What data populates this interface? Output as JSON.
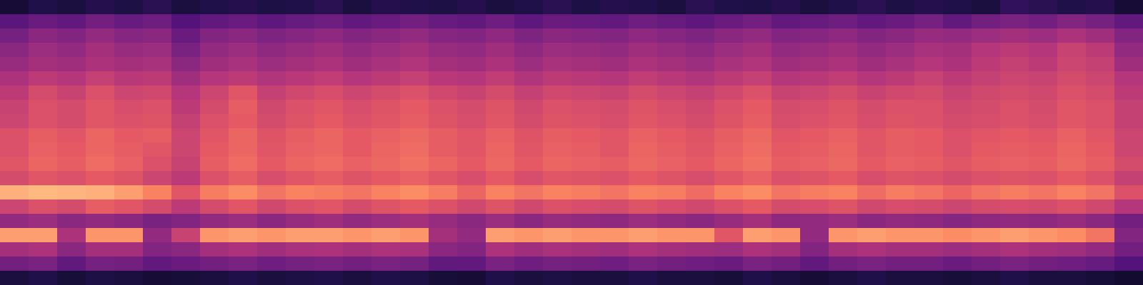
{
  "chart_data": {
    "type": "heatmap",
    "color": "magma",
    "tick_labels": false,
    "zlim": [
      0,
      100
    ],
    "cells": [
      [
        10,
        14,
        12,
        15,
        13,
        16,
        12,
        14,
        15,
        13,
        14,
        16,
        12,
        15,
        14,
        13,
        15,
        12,
        14,
        16,
        13,
        15,
        14,
        12,
        16,
        14,
        13,
        15,
        12,
        14,
        16,
        13,
        15,
        14,
        12,
        18,
        16,
        14,
        15,
        10
      ],
      [
        28,
        32,
        30,
        34,
        31,
        33,
        26,
        30,
        32,
        29,
        31,
        33,
        30,
        32,
        34,
        31,
        30,
        33,
        29,
        32,
        31,
        30,
        33,
        31,
        29,
        32,
        34,
        30,
        31,
        33,
        30,
        32,
        35,
        30,
        34,
        36,
        34,
        38,
        35,
        30
      ],
      [
        35,
        40,
        38,
        42,
        39,
        40,
        32,
        38,
        40,
        37,
        39,
        41,
        38,
        40,
        42,
        39,
        38,
        41,
        37,
        40,
        39,
        38,
        41,
        39,
        37,
        40,
        42,
        38,
        39,
        41,
        38,
        40,
        43,
        42,
        44,
        46,
        44,
        48,
        45,
        38
      ],
      [
        40,
        44,
        42,
        46,
        43,
        44,
        36,
        42,
        44,
        41,
        43,
        45,
        42,
        44,
        46,
        43,
        42,
        45,
        41,
        44,
        43,
        42,
        45,
        43,
        41,
        44,
        46,
        42,
        43,
        45,
        42,
        44,
        47,
        46,
        50,
        52,
        50,
        55,
        52,
        42
      ],
      [
        43,
        46,
        45,
        48,
        46,
        47,
        40,
        45,
        47,
        44,
        46,
        48,
        45,
        47,
        49,
        46,
        45,
        48,
        44,
        47,
        46,
        45,
        48,
        46,
        44,
        47,
        49,
        45,
        46,
        48,
        45,
        47,
        50,
        48,
        52,
        54,
        52,
        56,
        54,
        45
      ],
      [
        48,
        52,
        50,
        54,
        51,
        52,
        45,
        50,
        52,
        49,
        51,
        53,
        50,
        52,
        54,
        51,
        50,
        53,
        49,
        52,
        51,
        50,
        53,
        51,
        49,
        52,
        54,
        50,
        51,
        53,
        50,
        52,
        55,
        52,
        54,
        56,
        55,
        58,
        56,
        50
      ],
      [
        52,
        58,
        55,
        60,
        56,
        57,
        50,
        56,
        62,
        54,
        57,
        59,
        56,
        58,
        60,
        57,
        55,
        58,
        54,
        57,
        56,
        55,
        58,
        56,
        54,
        57,
        60,
        55,
        56,
        58,
        55,
        57,
        58,
        55,
        57,
        58,
        57,
        60,
        58,
        52
      ],
      [
        55,
        60,
        58,
        62,
        59,
        60,
        52,
        58,
        64,
        57,
        60,
        62,
        59,
        61,
        63,
        60,
        58,
        61,
        57,
        60,
        59,
        58,
        61,
        59,
        57,
        60,
        63,
        58,
        59,
        61,
        58,
        60,
        60,
        57,
        58,
        60,
        58,
        62,
        60,
        54
      ],
      [
        56,
        60,
        58,
        62,
        60,
        61,
        54,
        60,
        63,
        58,
        61,
        63,
        60,
        62,
        64,
        61,
        59,
        62,
        58,
        61,
        60,
        59,
        62,
        60,
        58,
        61,
        64,
        59,
        60,
        62,
        59,
        61,
        60,
        58,
        59,
        60,
        59,
        62,
        60,
        54
      ],
      [
        60,
        64,
        62,
        66,
        63,
        64,
        56,
        62,
        66,
        61,
        64,
        66,
        63,
        65,
        67,
        64,
        62,
        65,
        61,
        64,
        63,
        62,
        65,
        63,
        61,
        64,
        67,
        62,
        63,
        65,
        62,
        64,
        63,
        60,
        62,
        63,
        62,
        65,
        62,
        56
      ],
      [
        60,
        65,
        63,
        66,
        64,
        62,
        56,
        63,
        66,
        62,
        65,
        66,
        63,
        66,
        68,
        64,
        62,
        66,
        62,
        65,
        64,
        62,
        66,
        64,
        62,
        65,
        68,
        63,
        64,
        66,
        62,
        64,
        63,
        60,
        63,
        64,
        63,
        66,
        63,
        56
      ],
      [
        62,
        66,
        64,
        68,
        65,
        60,
        55,
        64,
        68,
        63,
        66,
        68,
        65,
        67,
        69,
        66,
        63,
        67,
        63,
        66,
        65,
        64,
        67,
        65,
        63,
        66,
        69,
        64,
        65,
        67,
        63,
        65,
        64,
        62,
        64,
        65,
        64,
        67,
        64,
        58
      ],
      [
        58,
        62,
        60,
        63,
        61,
        56,
        52,
        60,
        64,
        59,
        62,
        64,
        61,
        63,
        65,
        62,
        59,
        63,
        59,
        62,
        61,
        60,
        63,
        61,
        59,
        62,
        65,
        60,
        61,
        63,
        59,
        61,
        60,
        58,
        60,
        61,
        60,
        63,
        60,
        54
      ],
      [
        84,
        86,
        85,
        84,
        80,
        74,
        62,
        72,
        76,
        70,
        74,
        72,
        70,
        74,
        76,
        72,
        66,
        74,
        70,
        74,
        72,
        70,
        74,
        72,
        68,
        74,
        76,
        70,
        72,
        74,
        68,
        72,
        70,
        66,
        70,
        72,
        70,
        74,
        70,
        60
      ],
      [
        56,
        60,
        58,
        64,
        62,
        58,
        52,
        58,
        62,
        57,
        60,
        62,
        58,
        61,
        63,
        60,
        57,
        61,
        57,
        60,
        59,
        58,
        61,
        59,
        57,
        60,
        63,
        58,
        59,
        61,
        57,
        59,
        58,
        56,
        58,
        59,
        58,
        60,
        57,
        50
      ],
      [
        42,
        44,
        40,
        42,
        40,
        36,
        38,
        42,
        44,
        40,
        43,
        45,
        42,
        44,
        46,
        43,
        40,
        44,
        40,
        43,
        42,
        41,
        44,
        42,
        40,
        43,
        46,
        41,
        42,
        44,
        40,
        42,
        41,
        39,
        41,
        42,
        41,
        43,
        40,
        34
      ],
      [
        80,
        80,
        48,
        78,
        78,
        42,
        55,
        78,
        80,
        78,
        80,
        80,
        78,
        80,
        78,
        46,
        42,
        80,
        78,
        80,
        78,
        78,
        80,
        78,
        78,
        62,
        80,
        78,
        42,
        78,
        80,
        78,
        78,
        76,
        78,
        80,
        78,
        76,
        70,
        38
      ],
      [
        46,
        48,
        40,
        46,
        46,
        38,
        40,
        46,
        48,
        45,
        47,
        48,
        46,
        48,
        47,
        40,
        38,
        48,
        45,
        47,
        46,
        45,
        48,
        46,
        45,
        44,
        48,
        46,
        38,
        46,
        48,
        46,
        46,
        44,
        46,
        48,
        46,
        45,
        42,
        34
      ],
      [
        34,
        36,
        30,
        35,
        34,
        30,
        32,
        34,
        36,
        33,
        35,
        36,
        34,
        36,
        35,
        30,
        30,
        36,
        33,
        35,
        34,
        33,
        36,
        34,
        33,
        32,
        36,
        34,
        30,
        34,
        36,
        34,
        34,
        32,
        34,
        36,
        34,
        33,
        31,
        26
      ],
      [
        12,
        14,
        11,
        13,
        12,
        10,
        11,
        12,
        14,
        12,
        13,
        14,
        12,
        14,
        13,
        11,
        10,
        14,
        12,
        13,
        12,
        12,
        14,
        12,
        12,
        11,
        14,
        12,
        10,
        12,
        14,
        12,
        12,
        11,
        12,
        14,
        12,
        12,
        11,
        9
      ]
    ]
  }
}
